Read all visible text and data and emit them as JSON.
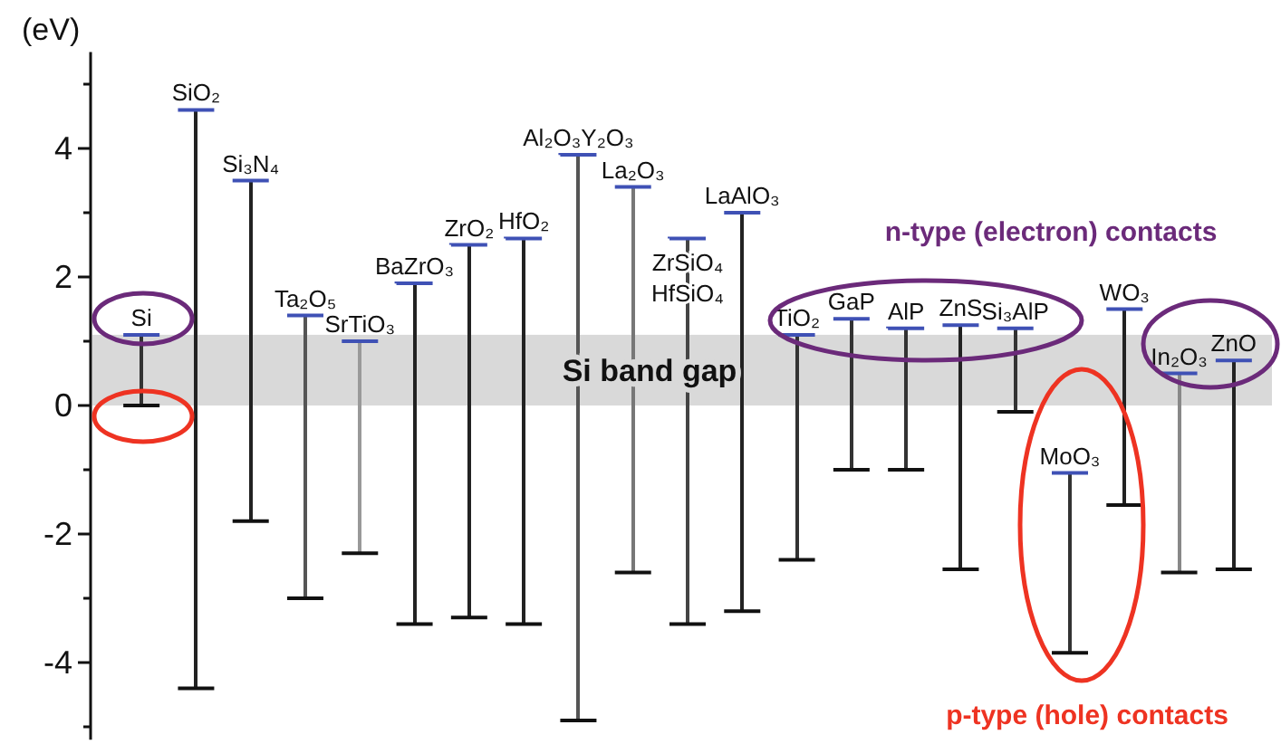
{
  "chart_data": {
    "type": "bar",
    "ylabel": "(eV)",
    "categories": [
      "Si",
      "SiO₂",
      "Si₃N₄",
      "Ta₂O₅",
      "SrTiO₃",
      "BaZrO₃",
      "ZrO₂",
      "HfO₂",
      "Al₂O₃Y₂O₃",
      "La₂O₃",
      "ZrSiO₄\nHfSiO₄",
      "LaAlO₃",
      "TiO₂",
      "GaP",
      "AlP",
      "ZnS",
      "Si₃AlP",
      "MoO₃",
      "WO₃",
      "In₂O₃",
      "ZnO"
    ],
    "base": [
      0,
      -4.4,
      -1.8,
      -3.0,
      -2.3,
      -3.4,
      -3.3,
      -3.4,
      -4.9,
      -2.6,
      -3.4,
      -3.2,
      -2.4,
      -1.0,
      -1.0,
      -2.55,
      -0.1,
      -3.85,
      -1.55,
      -2.6,
      -2.55
    ],
    "values": [
      1.1,
      9.0,
      5.3,
      4.4,
      3.3,
      5.3,
      5.8,
      6.0,
      8.8,
      6.0,
      6.0,
      6.2,
      3.5,
      2.35,
      2.2,
      3.8,
      1.3,
      2.8,
      3.05,
      3.1,
      3.25
    ],
    "colors": [
      "#333333",
      "#222222",
      "#222222",
      "#555555",
      "#999999",
      "#222222",
      "#222222",
      "#222222",
      "#555555",
      "#777777",
      "#444444",
      "#222222",
      "#333333",
      "#333333",
      "#333333",
      "#222222",
      "#333333",
      "#333333",
      "#222222",
      "#888888",
      "#222222"
    ],
    "ylim": [
      -5.2,
      5.5
    ],
    "yticks": [
      {
        "value": -5,
        "label": null
      },
      -4,
      {
        "value": -3,
        "label": null
      },
      -2,
      {
        "value": -1,
        "label": null
      },
      0,
      {
        "value": 1,
        "label": null
      },
      2,
      {
        "value": 3,
        "label": null
      },
      4,
      {
        "value": 5,
        "label": null
      }
    ],
    "bands": [
      {
        "axis": "y",
        "from": 0,
        "to": 1.1,
        "label": "Si band gap",
        "color": "#d9d9d9"
      }
    ],
    "annotations": [
      "n-type (electron) contacts",
      "p-type (hole) contacts"
    ],
    "grid": false
  }
}
